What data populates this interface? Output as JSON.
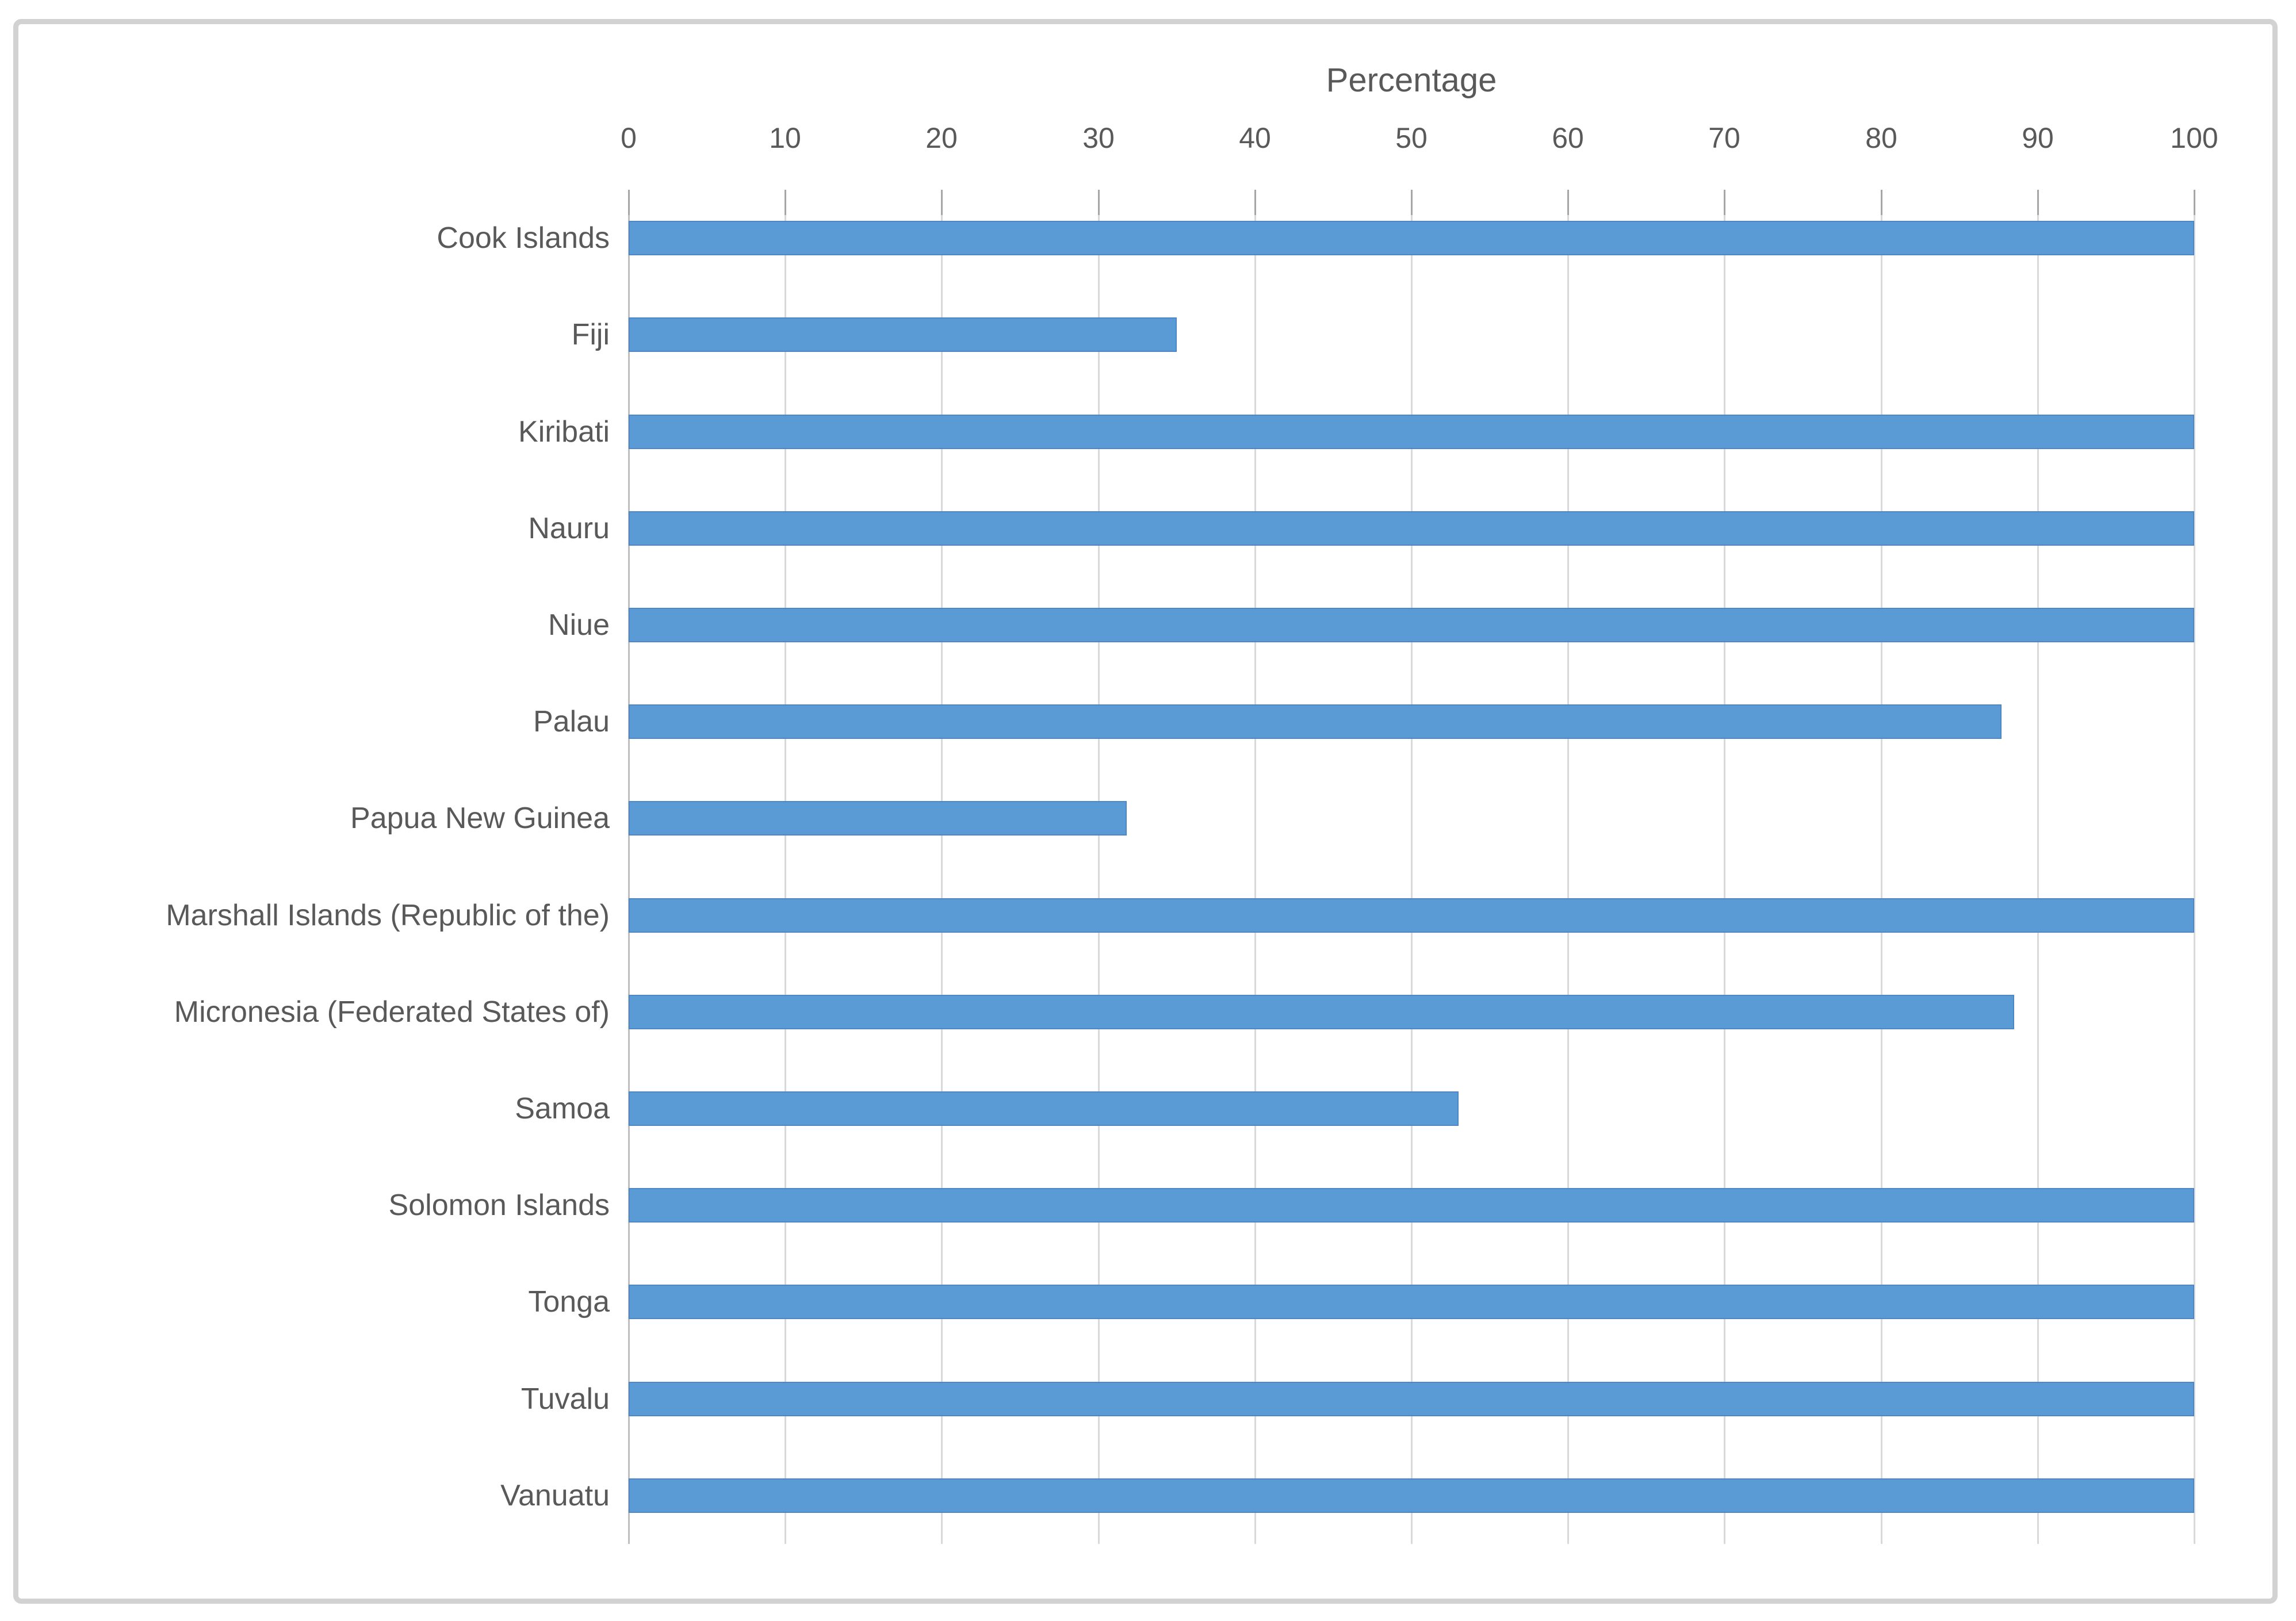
{
  "chart_data": {
    "type": "bar",
    "orientation": "horizontal",
    "title": "",
    "xlabel": "Percentage",
    "ylabel": "",
    "xlim": [
      0,
      100
    ],
    "xticks": [
      0,
      10,
      20,
      30,
      40,
      50,
      60,
      70,
      80,
      90,
      100
    ],
    "grid": true,
    "legend": "none",
    "bar_color": "#5b9bd5",
    "bar_border_color": "#4e86c6",
    "gridline_color": "#d9d9d9",
    "axis_text_color": "#595959",
    "categories": [
      "Cook Islands",
      "Fiji",
      "Kiribati",
      "Nauru",
      "Niue",
      "Palau",
      "Papua New Guinea",
      "Marshall Islands (Republic of the)",
      "Micronesia (Federated States of)",
      "Samoa",
      "Solomon Islands",
      "Tonga",
      "Tuvalu",
      "Vanuatu"
    ],
    "values": [
      100,
      35,
      100,
      100,
      100,
      87.7,
      31.8,
      100,
      88.5,
      53,
      100,
      100,
      100,
      100
    ]
  }
}
